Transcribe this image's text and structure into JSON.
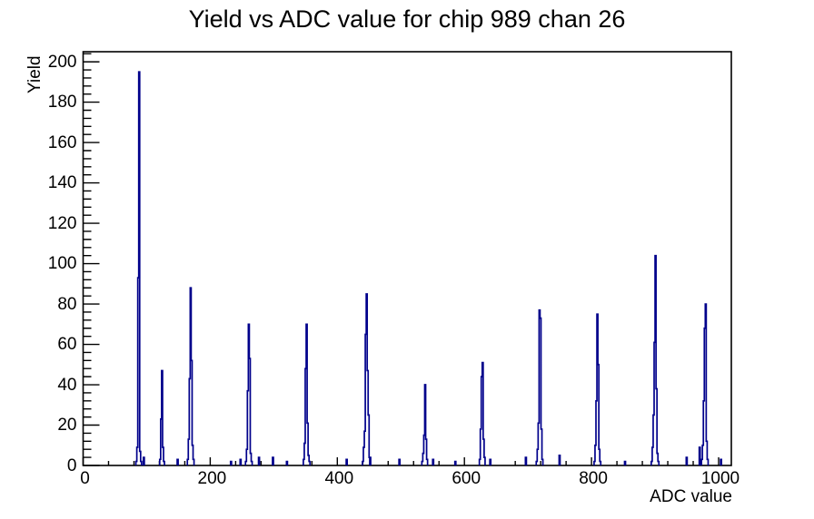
{
  "chart_data": {
    "type": "histogram",
    "title": "Yield vs ADC value for chip 989 chan 26",
    "xlabel": "ADC value",
    "ylabel": "Yield",
    "xlim": [
      0,
      1020
    ],
    "ylim": [
      0,
      205
    ],
    "x_major_ticks": [
      0,
      200,
      400,
      600,
      800,
      1000
    ],
    "y_major_ticks": [
      0,
      20,
      40,
      60,
      80,
      100,
      120,
      140,
      160,
      180,
      200
    ],
    "x_minor_step": 40,
    "y_minor_step": 4,
    "grid": false,
    "legend": "none",
    "line_color": "#00008b",
    "axis_color": "#000000",
    "background_color": "#ffffff",
    "bin_width": 1.5,
    "clusters": [
      {
        "x0": 83.0,
        "heights": [
          2,
          9,
          93,
          195,
          7,
          2
        ]
      },
      {
        "x0": 94.8,
        "heights": [
          4
        ]
      },
      {
        "x0": 120.5,
        "heights": [
          3,
          23,
          47,
          9,
          2
        ]
      },
      {
        "x0": 164.0,
        "heights": [
          3,
          13,
          43,
          88,
          52,
          10,
          3
        ]
      },
      {
        "x0": 255.5,
        "heights": [
          2,
          8,
          37,
          70,
          53,
          6,
          2
        ]
      },
      {
        "x0": 346.5,
        "heights": [
          3,
          11,
          48,
          70,
          21,
          5,
          2
        ]
      },
      {
        "x0": 439.5,
        "heights": [
          2,
          9,
          17,
          65,
          85,
          47,
          25,
          4
        ]
      },
      {
        "x0": 533.0,
        "heights": [
          2,
          6,
          15,
          40,
          13,
          3
        ]
      },
      {
        "x0": 623.5,
        "heights": [
          3,
          18,
          44,
          51,
          13,
          4
        ]
      },
      {
        "x0": 713.0,
        "heights": [
          2,
          8,
          21,
          77,
          73,
          18,
          3
        ]
      },
      {
        "x0": 804.0,
        "heights": [
          2,
          10,
          32,
          75,
          50,
          8,
          2
        ]
      },
      {
        "x0": 894.0,
        "heights": [
          2,
          9,
          25,
          61,
          104,
          38,
          6,
          2
        ]
      },
      {
        "x0": 969.5,
        "heights": [
          9
        ]
      },
      {
        "x0": 973.0,
        "heights": [
          3,
          10,
          32,
          68,
          80,
          12,
          3
        ]
      }
    ],
    "small_bins": [
      [
        148,
        3
      ],
      [
        232,
        2
      ],
      [
        247,
        3
      ],
      [
        276,
        4
      ],
      [
        298,
        4
      ],
      [
        320,
        2
      ],
      [
        414,
        3
      ],
      [
        451,
        4
      ],
      [
        497,
        3
      ],
      [
        550,
        3
      ],
      [
        585,
        2
      ],
      [
        640,
        3
      ],
      [
        696,
        4
      ],
      [
        749,
        5
      ],
      [
        852,
        2
      ],
      [
        949,
        4
      ],
      [
        1003,
        3
      ]
    ],
    "peak_labels_shown": false
  }
}
